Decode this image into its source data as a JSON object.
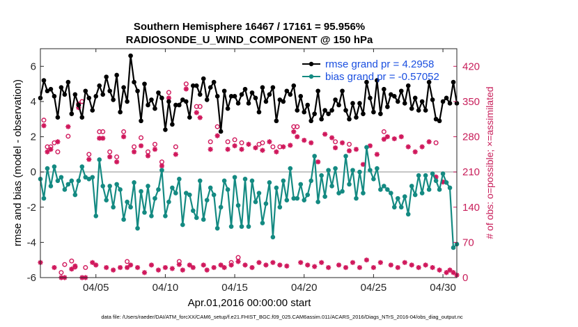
{
  "chart_data": {
    "type": "line",
    "title": "Southern Hemisphere 16467 / 17161 = 95.956%",
    "subtitle": "RADIOSONDE_U_WIND_COMPONENT @ 150 hPa",
    "xlabel": "Apr.01,2016 00:00:00 start",
    "ylabel": "rmse and bias (model - observation)",
    "y2label": "# of obs: o=possible; ×=assimilated",
    "footer": "data file: /Users/raeder/DAI/ATM_forcXX/CAM6_setup/f.e21.FHIST_BGC.f09_025.CAM6assim.011/ACARS_2016/Diags_NTrS_2016-04/obs_diag_output.nc",
    "xlim": [
      1,
      31
    ],
    "ylim": [
      -6,
      7
    ],
    "y2lim": [
      0,
      455
    ],
    "xticks": [
      5,
      10,
      15,
      20,
      25,
      30
    ],
    "xticklabels": [
      "04/05",
      "04/10",
      "04/15",
      "04/20",
      "04/25",
      "04/30"
    ],
    "yticks": [
      -6,
      -4,
      -2,
      0,
      2,
      4,
      6
    ],
    "yticklabels": [
      "-6",
      "-4",
      "-2",
      "0",
      "2",
      "4",
      "6"
    ],
    "y2ticks": [
      0,
      70,
      140,
      210,
      280,
      350,
      420
    ],
    "y2ticklabels": [
      "0",
      "70",
      "140",
      "210",
      "280",
      "350",
      "420"
    ],
    "legend_position": "top-right",
    "colors": {
      "rmse": "#000000",
      "bias": "#148a82",
      "obs": "#d0185c",
      "zero": "#b3b3b3"
    },
    "x": [
      1.0,
      1.25,
      1.5,
      1.75,
      2.0,
      2.25,
      2.5,
      2.75,
      3.0,
      3.25,
      3.5,
      3.75,
      4.0,
      4.25,
      4.5,
      4.75,
      5.0,
      5.25,
      5.5,
      5.75,
      6.0,
      6.25,
      6.5,
      6.75,
      7.0,
      7.25,
      7.5,
      7.75,
      8.0,
      8.25,
      8.5,
      8.75,
      9.0,
      9.25,
      9.5,
      9.75,
      10.0,
      10.25,
      10.5,
      10.75,
      11.0,
      11.25,
      11.5,
      11.75,
      12.0,
      12.25,
      12.5,
      12.75,
      13.0,
      13.25,
      13.5,
      13.75,
      14.0,
      14.25,
      14.5,
      14.75,
      15.0,
      15.25,
      15.5,
      15.75,
      16.0,
      16.25,
      16.5,
      16.75,
      17.0,
      17.25,
      17.5,
      17.75,
      18.0,
      18.25,
      18.5,
      18.75,
      19.0,
      19.25,
      19.5,
      19.75,
      20.0,
      20.25,
      20.5,
      20.75,
      21.0,
      21.25,
      21.5,
      21.75,
      22.0,
      22.25,
      22.5,
      22.75,
      23.0,
      23.25,
      23.5,
      23.75,
      24.0,
      24.25,
      24.5,
      24.75,
      25.0,
      25.25,
      25.5,
      25.75,
      26.0,
      26.25,
      26.5,
      26.75,
      27.0,
      27.25,
      27.5,
      27.75,
      28.0,
      28.25,
      28.5,
      28.75,
      29.0,
      29.25,
      29.5,
      29.75,
      30.0,
      30.25,
      30.5,
      30.75,
      31.0
    ],
    "series": [
      {
        "name": "rmse grand pr = 4.2958",
        "values": [
          4.2,
          5.2,
          4.6,
          4.7,
          4.3,
          3.1,
          4.8,
          4.4,
          5.1,
          3.3,
          4.4,
          3.8,
          3.1,
          4.6,
          4.2,
          3.5,
          4.3,
          4.9,
          4.4,
          5.4,
          4.6,
          4.1,
          5.5,
          3.4,
          4.8,
          4.0,
          6.6,
          5.1,
          4.6,
          2.9,
          5.0,
          3.8,
          4.1,
          3.6,
          4.5,
          4.2,
          2.4,
          4.0,
          2.7,
          3.8,
          3.8,
          4.1,
          4.0,
          3.1,
          4.9,
          4.9,
          4.4,
          5.3,
          4.1,
          4.8,
          5.1,
          4.3,
          2.3,
          4.6,
          3.6,
          4.3,
          4.3,
          3.9,
          4.4,
          4.7,
          3.9,
          4.5,
          4.2,
          3.4,
          4.8,
          4.0,
          4.4,
          4.8,
          2.9,
          4.1,
          4.0,
          4.6,
          4.4,
          4.9,
          3.5,
          4.3,
          3.4,
          3.8,
          2.9,
          3.3,
          4.6,
          3.0,
          3.5,
          3.3,
          3.5,
          4.1,
          3.8,
          4.6,
          3.5,
          3.0,
          3.9,
          3.1,
          3.9,
          3.3,
          5.1,
          4.2,
          3.4,
          5.2,
          3.3,
          4.7,
          3.7,
          4.4,
          4.3,
          4.0,
          4.6,
          3.9,
          4.9,
          3.6,
          4.2,
          3.5,
          4.0,
          3.5,
          5.1,
          4.1,
          3.0,
          2.9,
          4.0,
          4.2,
          3.9,
          5.1,
          3.9
        ],
        "color": "#000000"
      },
      {
        "name": "bias grand pr = -0.57052",
        "values": [
          -0.4,
          -1.5,
          0.2,
          -0.8,
          0.3,
          -0.5,
          -0.3,
          -1.0,
          -0.7,
          -0.5,
          -1.3,
          -0.5,
          0.3,
          -0.3,
          -0.4,
          -0.3,
          -2.5,
          0.7,
          -0.8,
          -1.6,
          -0.8,
          -2.0,
          -0.7,
          -1.0,
          -2.7,
          -1.7,
          -2.0,
          -0.6,
          -3.2,
          -1.1,
          -2.3,
          -0.8,
          -2.5,
          -1.5,
          -1.0,
          0.1,
          -2.5,
          -1.7,
          -0.9,
          -1.2,
          -0.4,
          -3.0,
          -1.2,
          -1.3,
          -2.2,
          -2.6,
          -0.5,
          -2.7,
          -1.6,
          -0.9,
          -1.3,
          -3.2,
          -2.0,
          -0.5,
          -1.0,
          -3.1,
          -0.3,
          -1.9,
          -3.1,
          -0.4,
          -3.1,
          -0.5,
          -1.7,
          -1.2,
          -2.9,
          -1.8,
          -0.6,
          -3.7,
          -0.9,
          -2.0,
          -0.5,
          -1.6,
          0.2,
          -1.5,
          -1.5,
          -0.7,
          -1.6,
          -1.3,
          -0.5,
          0.9,
          -1.7,
          -0.2,
          -1.4,
          0.1,
          -0.8,
          0.2,
          -1.2,
          -1.1,
          0.9,
          -0.7,
          0.1,
          -1.5,
          0.0,
          -1.2,
          1.4,
          0.1,
          -0.4,
          0.2,
          -1.0,
          -0.8,
          -1.0,
          -1.2,
          -2.0,
          -1.5,
          -2.0,
          -1.4,
          -2.4,
          -0.8,
          -1.3,
          -0.2,
          -1.2,
          -0.2,
          -1.0,
          -0.1,
          -0.5,
          -1.0,
          -0.1,
          -0.6,
          -0.9,
          -4.3,
          -4.1
        ],
        "color": "#148a82"
      },
      {
        "name": "possible",
        "marker": "o",
        "values": [
          0,
          313,
          260,
          260,
          268,
          250,
          10,
          26,
          281,
          33,
          21,
          345,
          350,
          20,
          245,
          0,
          0,
          290,
          290,
          0,
          250,
          0,
          240,
          0,
          290,
          32,
          0,
          260,
          0,
          278,
          0,
          250,
          0,
          265,
          0,
          230,
          0,
          368,
          0,
          260,
          32,
          0,
          385,
          0,
          0,
          340,
          340,
          0,
          0,
          270,
          0,
          300,
          0,
          0,
          270,
          30,
          274,
          40,
          268,
          0,
          0,
          0,
          0,
          265,
          268,
          0,
          0,
          260,
          0,
          260,
          0,
          0,
          0,
          300,
          300,
          0,
          0,
          0,
          0,
          0,
          0,
          0,
          0,
          0,
          0,
          270,
          0,
          0,
          0,
          265,
          0,
          0,
          0,
          0,
          0,
          0,
          0,
          0,
          0,
          290,
          0,
          0,
          0,
          0,
          0,
          0,
          0,
          0,
          0,
          0,
          0,
          0,
          0,
          0,
          268,
          0,
          0,
          0,
          0,
          0,
          0
        ],
        "color": "#d0185c"
      },
      {
        "name": "assimilated",
        "marker": "x",
        "values": [
          30,
          302,
          250,
          255,
          20,
          270,
          0,
          0,
          300,
          17,
          23,
          338,
          0,
          0,
          235,
          30,
          25,
          277,
          277,
          20,
          240,
          15,
          230,
          20,
          280,
          20,
          25,
          250,
          20,
          262,
          10,
          242,
          25,
          255,
          15,
          222,
          20,
          357,
          18,
          245,
          26,
          15,
          375,
          25,
          20,
          328,
          318,
          25,
          15,
          255,
          20,
          282,
          25,
          20,
          255,
          25,
          262,
          32,
          255,
          25,
          265,
          20,
          258,
          30,
          253,
          25,
          270,
          30,
          250,
          25,
          260,
          23,
          263,
          290,
          280,
          30,
          273,
          25,
          268,
          22,
          230,
          30,
          285,
          20,
          278,
          258,
          25,
          268,
          20,
          252,
          30,
          255,
          20,
          225,
          35,
          262,
          20,
          245,
          30,
          275,
          280,
          25,
          276,
          20,
          280,
          30,
          260,
          25,
          250,
          20,
          260,
          25,
          270,
          20,
          200,
          15,
          190,
          10,
          15,
          10,
          5
        ],
        "color": "#d0185c"
      }
    ]
  }
}
